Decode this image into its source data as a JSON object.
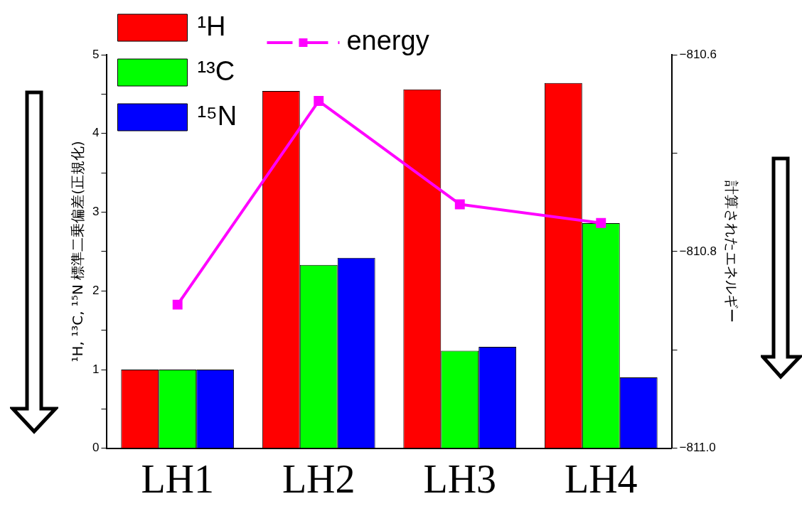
{
  "chart_data": {
    "type": "bar",
    "categories": [
      "LH1",
      "LH2",
      "LH3",
      "LH4"
    ],
    "ylabel": "¹H, ¹³C, ¹⁵N 標準二乗偏差(正規化)",
    "y2label": "計算されたエネルギー",
    "series": [
      {
        "name": "¹H",
        "color": "#ff0000",
        "values": [
          1,
          4.54,
          4.56,
          4.64
        ]
      },
      {
        "name": "¹³C",
        "color": "#00ff00",
        "values": [
          1,
          2.33,
          1.24,
          2.86
        ]
      },
      {
        "name": "¹⁵N",
        "color": "#0000ff",
        "values": [
          1,
          2.42,
          1.29,
          0.9
        ]
      },
      {
        "name": "energy",
        "type": "line",
        "axis": "y2",
        "color": "#ff00ff",
        "marker": "square",
        "values": [
          -810.854,
          -810.647,
          -810.752,
          -810.771
        ]
      }
    ],
    "ylim": [
      0,
      5
    ],
    "yticks": [
      0,
      {
        "value": 0.5,
        "label": null
      },
      1,
      {
        "value": 1.5,
        "label": null
      },
      2,
      {
        "value": 2.5,
        "label": null
      },
      3,
      {
        "value": 3.5,
        "label": null
      },
      4,
      {
        "value": 4.5,
        "label": null
      },
      5
    ],
    "y2lim": [
      -811.0,
      -810.6
    ],
    "y2ticks": [
      {
        "value": -811.0,
        "label": "−811.0"
      },
      {
        "value": -810.9,
        "label": null
      },
      {
        "value": -810.8,
        "label": "−810.8"
      },
      {
        "value": -810.7,
        "label": null
      },
      {
        "value": -810.6,
        "label": "−810.6"
      }
    ],
    "grid": false,
    "legend": "top left"
  }
}
